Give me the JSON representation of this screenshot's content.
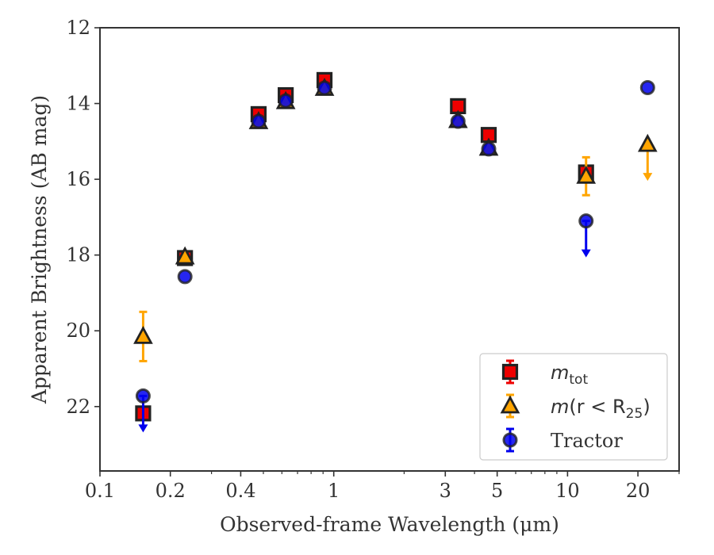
{
  "chart_data": {
    "type": "scatter",
    "title": "",
    "xlabel": "Observed-frame Wavelength (μm)",
    "ylabel": "Apparent Brightness (AB mag)",
    "xscale": "log",
    "xlim": [
      0.1,
      30
    ],
    "ylim": [
      23.7,
      12
    ],
    "y_inverted": true,
    "grid": false,
    "x_ticks": [
      0.1,
      0.2,
      0.4,
      1,
      3,
      5,
      10,
      20
    ],
    "x_tick_labels": [
      "0.1",
      "0.2",
      "0.4",
      "1",
      "3",
      "5",
      "10",
      "20"
    ],
    "y_ticks": [
      12,
      14,
      16,
      18,
      20,
      22
    ],
    "y_tick_labels": [
      "12",
      "14",
      "16",
      "18",
      "20",
      "22"
    ],
    "legend": {
      "placement": "lower-right",
      "entries": [
        {
          "key": "mtot",
          "m": "m",
          "sub": "tot",
          "rest": ""
        },
        {
          "key": "mr25",
          "m": "m",
          "sub": "",
          "rest": "(r < R",
          "rest_sub": "25",
          "rest_end": ")"
        },
        {
          "key": "tractor",
          "label": "Tractor"
        }
      ]
    },
    "series": [
      {
        "key": "mtot",
        "marker": "square",
        "color": "#ee0000",
        "points": [
          {
            "x": 0.153,
            "y": 22.18
          },
          {
            "x": 0.231,
            "y": 18.08
          },
          {
            "x": 0.477,
            "y": 14.28
          },
          {
            "x": 0.623,
            "y": 13.78
          },
          {
            "x": 0.913,
            "y": 13.38
          },
          {
            "x": 3.4,
            "y": 14.07
          },
          {
            "x": 4.6,
            "y": 14.83
          },
          {
            "x": 12.0,
            "y": 15.82
          }
        ]
      },
      {
        "key": "mr25",
        "marker": "triangle",
        "color": "#ffa500",
        "points": [
          {
            "x": 0.153,
            "y": 20.15,
            "err": 0.65
          },
          {
            "x": 0.231,
            "y": 18.05
          },
          {
            "x": 0.477,
            "y": 14.48
          },
          {
            "x": 0.623,
            "y": 13.95
          },
          {
            "x": 0.913,
            "y": 13.6
          },
          {
            "x": 3.4,
            "y": 14.45
          },
          {
            "x": 4.6,
            "y": 15.18
          },
          {
            "x": 12.0,
            "y": 15.92,
            "err": 0.5
          },
          {
            "x": 22.0,
            "y": 15.08,
            "upper_limit": true
          }
        ]
      },
      {
        "key": "tractor",
        "marker": "circle",
        "color": "#0000ee",
        "points": [
          {
            "x": 0.153,
            "y": 21.72,
            "upper_limit": true
          },
          {
            "x": 0.231,
            "y": 18.57
          },
          {
            "x": 0.477,
            "y": 14.47
          },
          {
            "x": 0.623,
            "y": 13.93
          },
          {
            "x": 0.913,
            "y": 13.59
          },
          {
            "x": 3.4,
            "y": 14.47
          },
          {
            "x": 4.6,
            "y": 15.2
          },
          {
            "x": 12.0,
            "y": 17.1,
            "upper_limit": true
          },
          {
            "x": 22.0,
            "y": 13.58
          }
        ]
      }
    ]
  }
}
